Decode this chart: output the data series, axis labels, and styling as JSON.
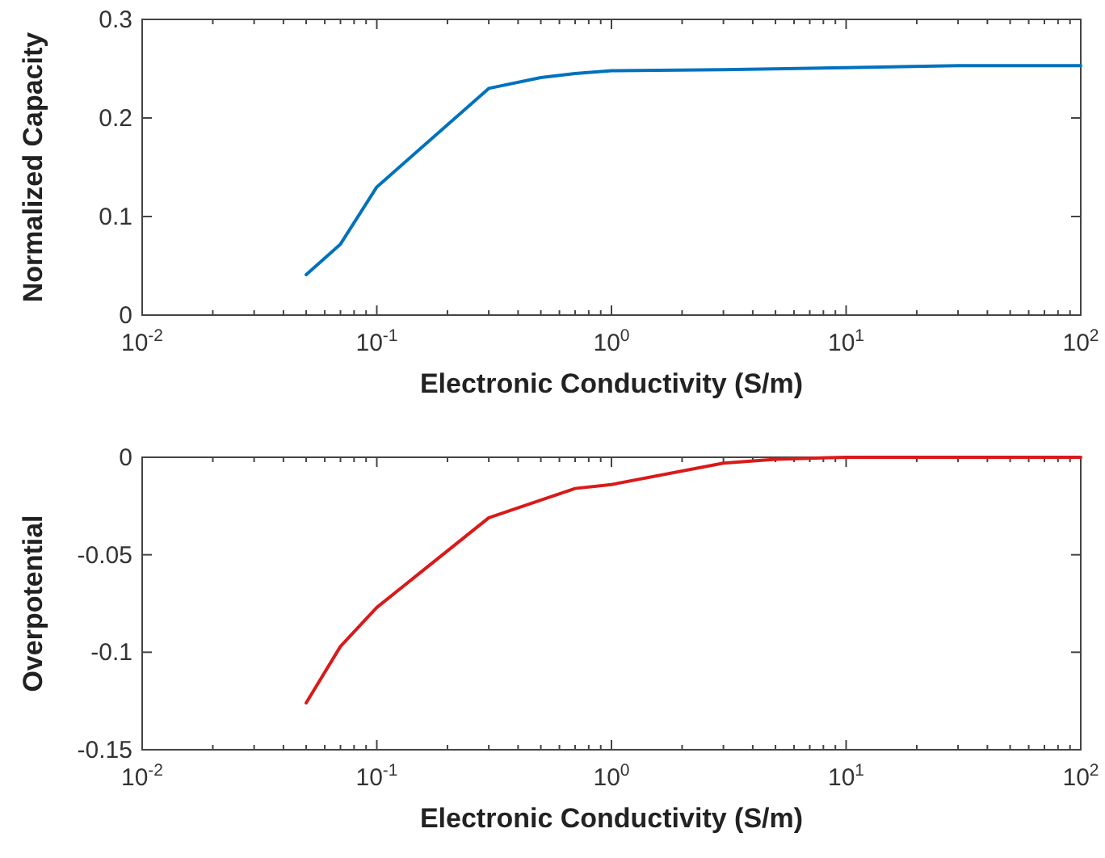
{
  "chart_data": [
    {
      "type": "line",
      "xlabel": "Electronic Conductivity (S/m)",
      "ylabel": "Normalized Capacity",
      "log": "x",
      "grid": false,
      "x": [
        0.05,
        0.07,
        0.1,
        0.3,
        0.5,
        0.7,
        1,
        3,
        10,
        30,
        100
      ],
      "series": [
        {
          "color": "#0072bd",
          "values": [
            0.041,
            0.072,
            0.13,
            0.23,
            0.241,
            0.245,
            0.248,
            0.249,
            0.251,
            0.253,
            0.253
          ]
        }
      ],
      "xlim": [
        0.01,
        100
      ],
      "xticks": [
        {
          "value": 0.01,
          "label": "10$^{-2}$"
        },
        {
          "value": 0.1,
          "label": "10$^{-1}$"
        },
        {
          "value": 1,
          "label": "10$^{0}$"
        },
        {
          "value": 10,
          "label": "10$^{1}$"
        },
        {
          "value": 100,
          "label": "10$^{2}$"
        }
      ],
      "ylim": [
        0,
        0.3
      ],
      "yticks": [
        0,
        0.1,
        0.2,
        0.3
      ]
    },
    {
      "type": "line",
      "xlabel": "Electronic Conductivity (S/m)",
      "ylabel": "Overpotential",
      "log": "x",
      "grid": false,
      "x": [
        0.05,
        0.07,
        0.1,
        0.3,
        0.7,
        1,
        3,
        5,
        10,
        100
      ],
      "series": [
        {
          "color": "#d91a1a",
          "values": [
            -0.126,
            -0.097,
            -0.077,
            -0.031,
            -0.016,
            -0.014,
            -0.003,
            -0.001,
            0,
            0
          ]
        }
      ],
      "xlim": [
        0.01,
        100
      ],
      "xticks": [
        {
          "value": 0.01,
          "label": "10$^{-2}$"
        },
        {
          "value": 0.1,
          "label": "10$^{-1}$"
        },
        {
          "value": 1,
          "label": "10$^{0}$"
        },
        {
          "value": 10,
          "label": "10$^{1}$"
        },
        {
          "value": 100,
          "label": "10$^{2}$"
        }
      ],
      "ylim": [
        -0.15,
        0
      ],
      "yticks": [
        -0.15,
        -0.1,
        -0.05,
        0
      ]
    }
  ]
}
